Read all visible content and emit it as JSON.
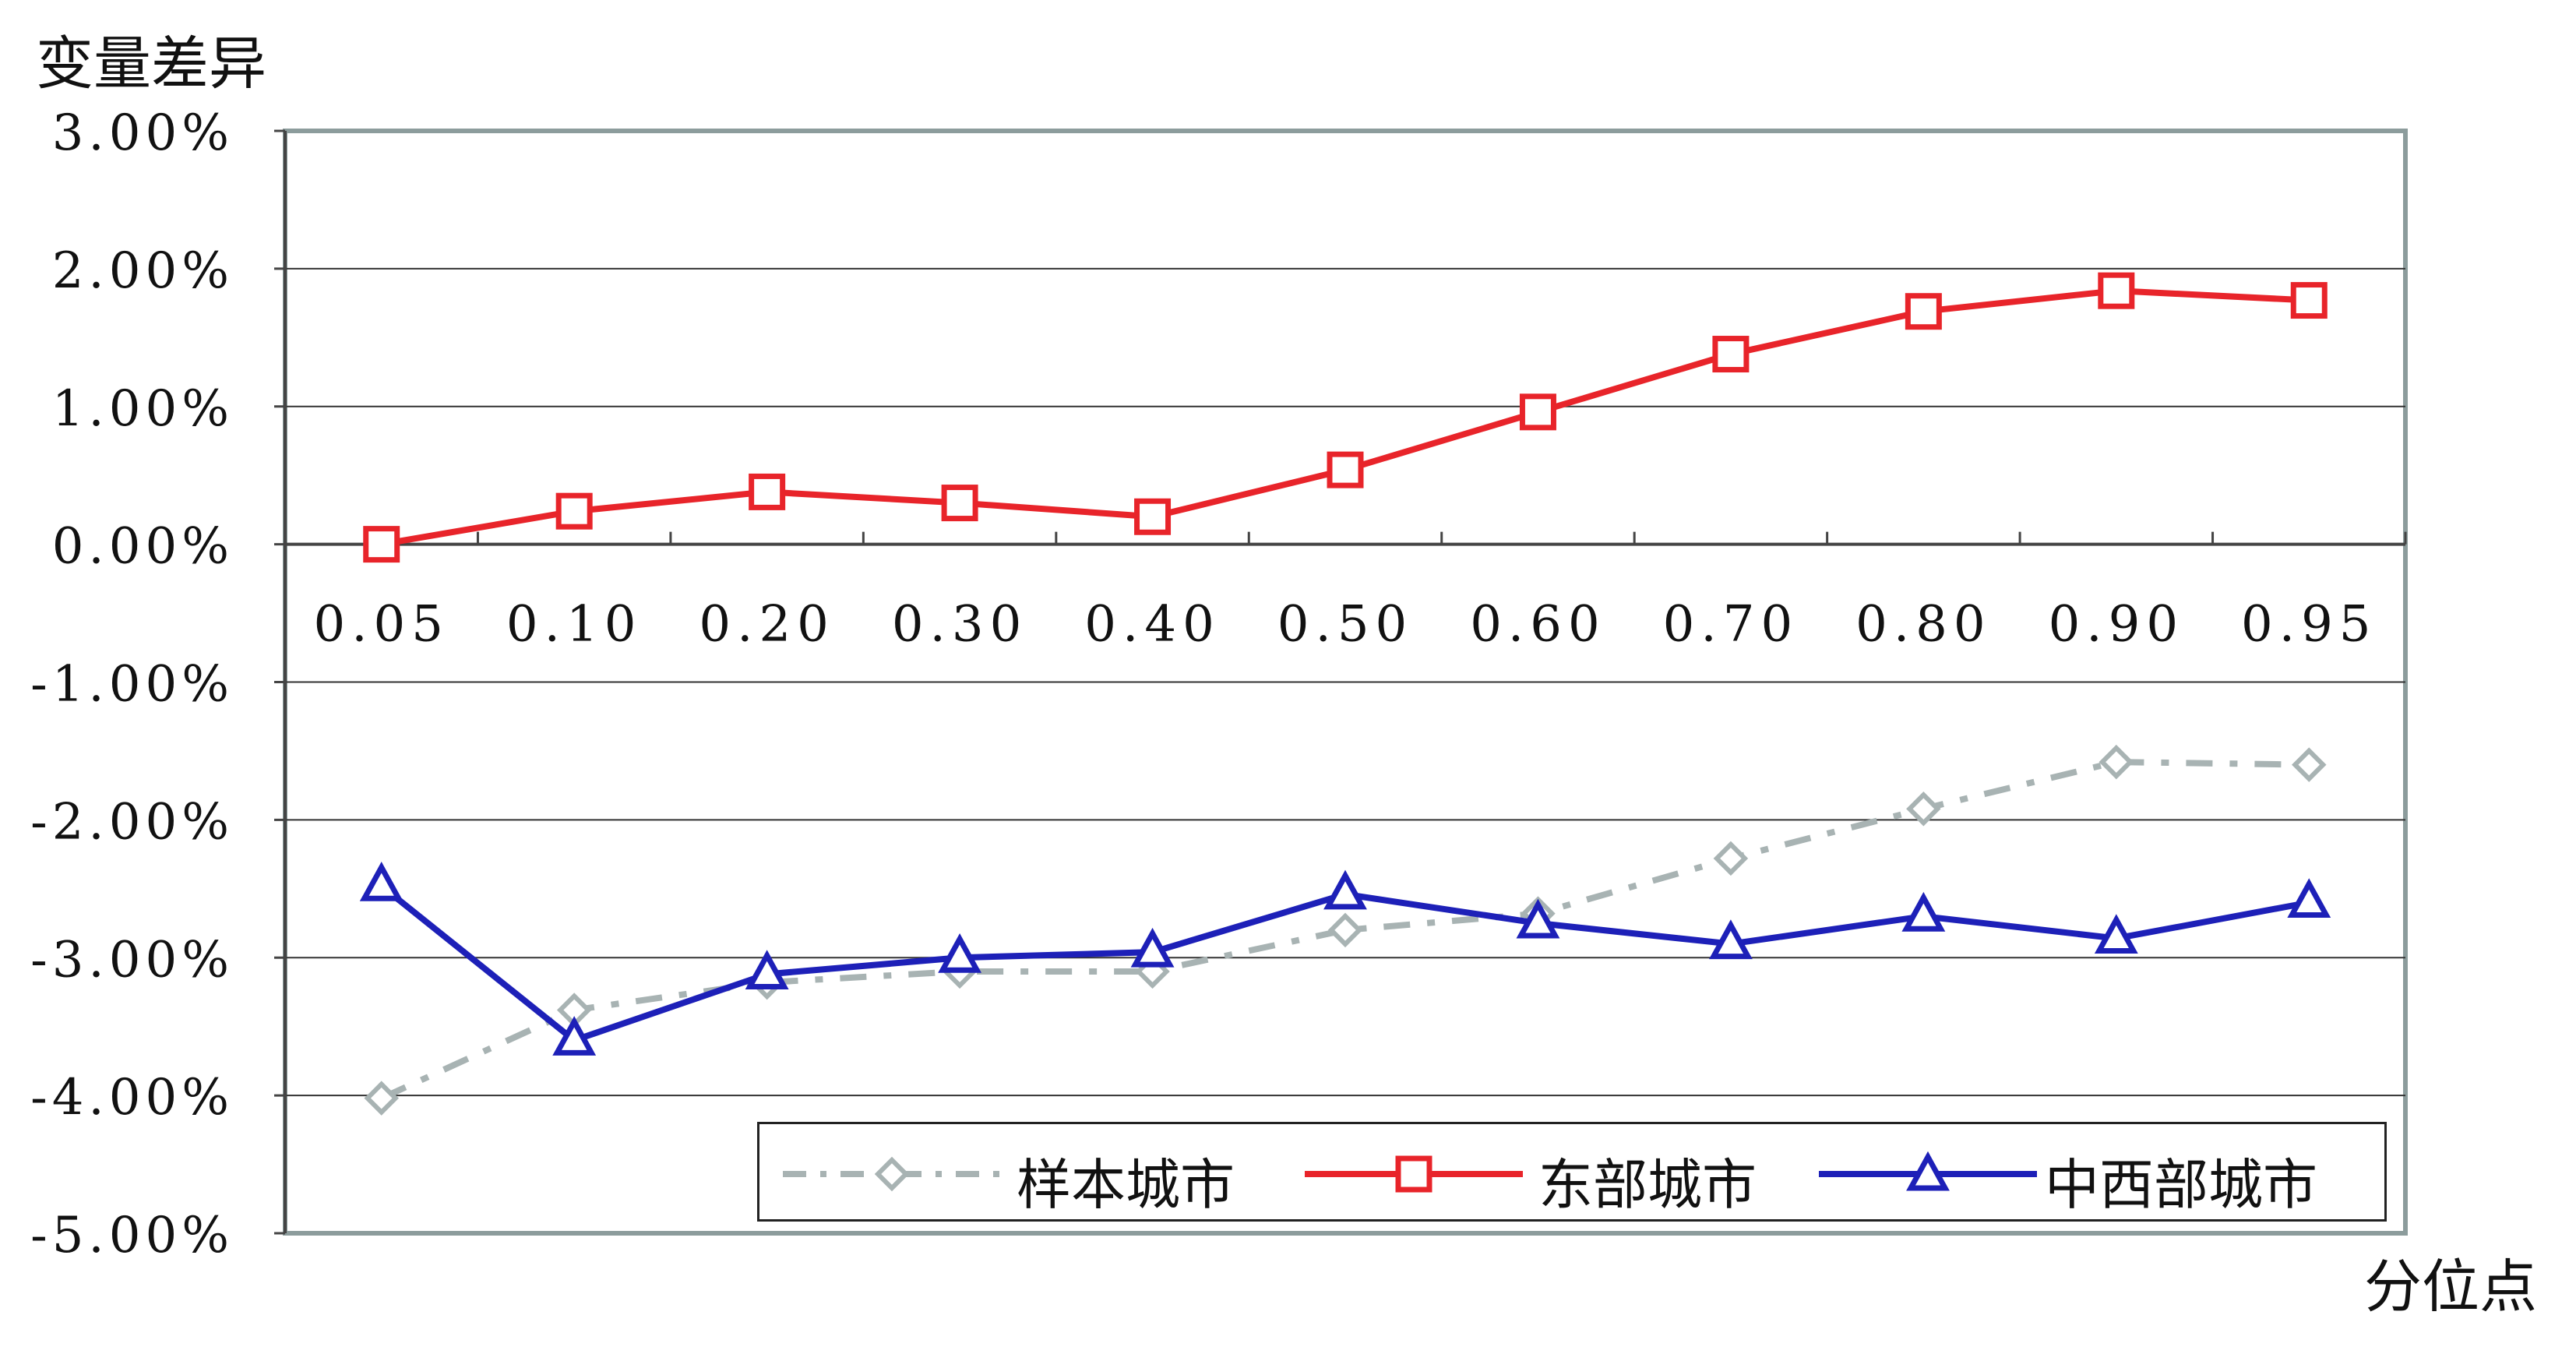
{
  "chart_data": {
    "type": "line",
    "ylabel": "变量差异",
    "xlabel": "分位点",
    "categories": [
      "0.05",
      "0.10",
      "0.20",
      "0.30",
      "0.40",
      "0.50",
      "0.60",
      "0.70",
      "0.80",
      "0.90",
      "0.95"
    ],
    "y_ticks": [
      "3.00%",
      "2.00%",
      "1.00%",
      "0.00%",
      "-1.00%",
      "-2.00%",
      "-3.00%",
      "-4.00%",
      "-5.00%"
    ],
    "ylim": [
      -5,
      3
    ],
    "y_unit": "%",
    "grid": true,
    "legend_position": "bottom-right inside plot",
    "series": [
      {
        "name": "样本城市",
        "values": [
          -4.02,
          -3.38,
          -3.18,
          -3.1,
          -3.1,
          -2.8,
          -2.68,
          -2.28,
          -1.92,
          -1.58,
          -1.6
        ],
        "color": "#a8b3b3",
        "style": "dash-dot",
        "marker": "diamond"
      },
      {
        "name": "东部城市",
        "values": [
          0.0,
          0.24,
          0.38,
          0.3,
          0.2,
          0.54,
          0.96,
          1.38,
          1.69,
          1.84,
          1.77
        ],
        "color": "#e8242a",
        "style": "solid",
        "marker": "square"
      },
      {
        "name": "中西部城市",
        "values": [
          -2.48,
          -3.6,
          -3.12,
          -3.0,
          -2.96,
          -2.54,
          -2.75,
          -2.9,
          -2.7,
          -2.86,
          -2.6
        ],
        "color": "#1d20b8",
        "style": "solid",
        "marker": "triangle"
      }
    ]
  }
}
